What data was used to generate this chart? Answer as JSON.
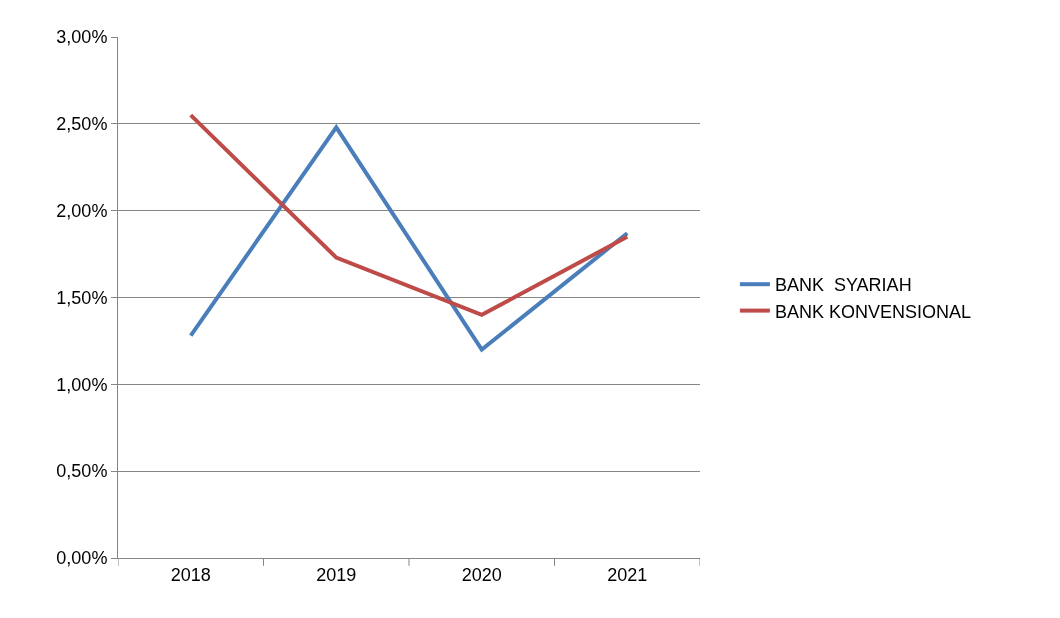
{
  "chart_data": {
    "type": "line",
    "categories": [
      "2018",
      "2019",
      "2020",
      "2021"
    ],
    "series": [
      {
        "name": "BANK  SYARIAH",
        "color": "#4a7ebb",
        "values": [
          1.28,
          2.48,
          1.2,
          1.87
        ]
      },
      {
        "name": "BANK KONVENSIONAL",
        "color": "#be4b48",
        "values": [
          2.55,
          1.73,
          1.4,
          1.85
        ]
      }
    ],
    "ylim": [
      0,
      3
    ],
    "yticks": [
      {
        "value": 0,
        "label": "0,00%"
      },
      {
        "value": 0.5,
        "label": "0,50%"
      },
      {
        "value": 1,
        "label": "1,00%"
      },
      {
        "value": 1.5,
        "label": "1,50%"
      },
      {
        "value": 2,
        "label": "2,00%"
      },
      {
        "value": 2.5,
        "label": "2,50%"
      },
      {
        "value": 3,
        "label": "3,00%"
      }
    ],
    "grid": "y",
    "legend": "right",
    "marker": "none",
    "line_style": "solid"
  }
}
